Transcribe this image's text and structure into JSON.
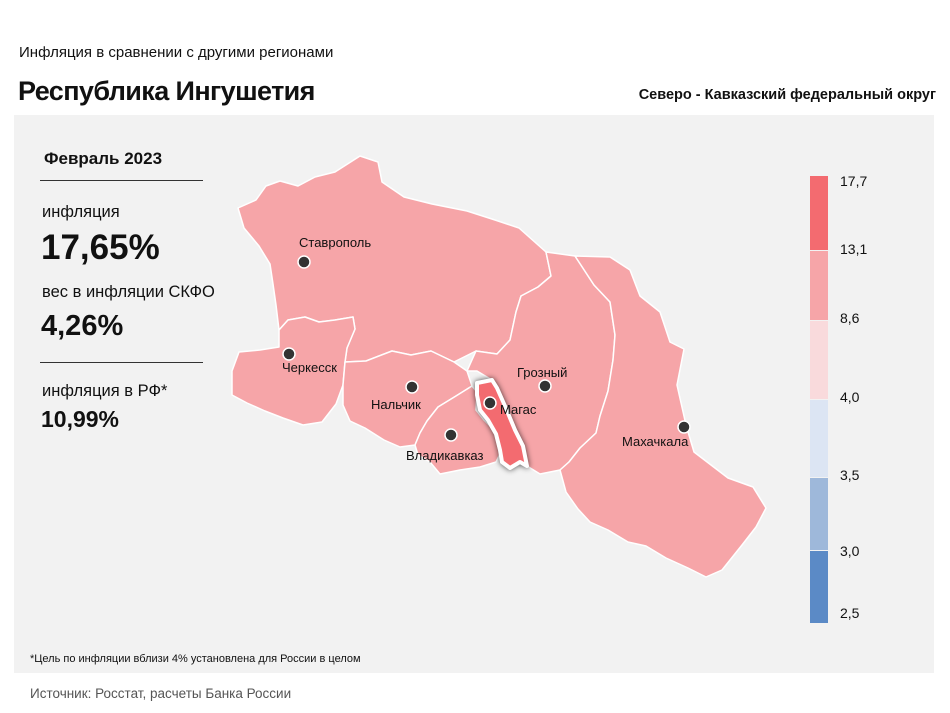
{
  "header": {
    "subtitle": "Инфляция  в сравнении  с другими  регионами",
    "title": "Республика Ингушетия",
    "district": "Северо - Кавказский федеральный округ"
  },
  "stats": {
    "period": "Февраль 2023",
    "inflation_label": "инфляция",
    "inflation_value": "17,65%",
    "weight_label": "вес в инфляции  СКФО",
    "weight_value": "4,26%",
    "rf_label": "инфляция  в РФ*",
    "rf_value": "10,99%"
  },
  "map": {
    "highlighted_region": "Магас",
    "cities": [
      {
        "name": "Ставрополь"
      },
      {
        "name": "Черкесск"
      },
      {
        "name": "Нальчик"
      },
      {
        "name": "Владикавказ"
      },
      {
        "name": "Магас"
      },
      {
        "name": "Грозный"
      },
      {
        "name": "Махачкала"
      }
    ],
    "colors": {
      "regions": "#f6a5a8",
      "highlight": "#f36b70",
      "border": "#ffffff",
      "city_dot": "#333333"
    }
  },
  "legend": {
    "ticks": [
      "17,7",
      "13,1",
      "8,6",
      "4,0",
      "3,5",
      "3,0",
      "2,5"
    ],
    "bins": [
      {
        "from": "13,1",
        "to": "17,7",
        "color": "#f36b70"
      },
      {
        "from": "8,6",
        "to": "13,1",
        "color": "#f6a5a8"
      },
      {
        "from": "4,0",
        "to": "8,6",
        "color": "#f9dadc"
      },
      {
        "from": "3,5",
        "to": "4,0",
        "color": "#dce5f3"
      },
      {
        "from": "3,0",
        "to": "3,5",
        "color": "#9eb8da"
      },
      {
        "from": "2,5",
        "to": "3,0",
        "color": "#5b8ac6"
      }
    ]
  },
  "footer": {
    "note": "*Цель по инфляции вблизи 4% установлена для России в целом",
    "source": "Источник: Росстат, расчеты Банка России"
  }
}
